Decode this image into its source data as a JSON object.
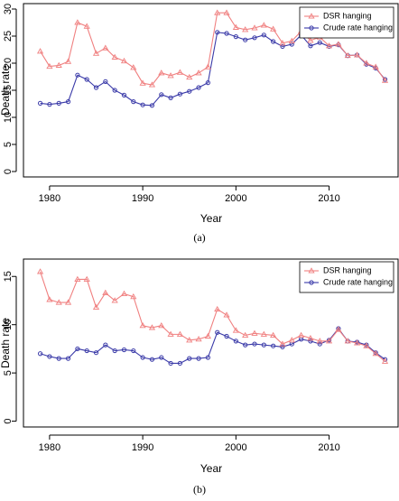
{
  "colors": {
    "dsr": "#f08080",
    "crude": "#3a3aa8",
    "axis": "#000000"
  },
  "chart_data": [
    {
      "type": "line",
      "caption": "(a)",
      "xlabel": "Year",
      "ylabel": "Death rate",
      "xlim": [
        1977.2,
        2017.5
      ],
      "ylim": [
        -1,
        31
      ],
      "xticks": [
        1980,
        1990,
        2000,
        2010
      ],
      "yticks": [
        0,
        5,
        10,
        15,
        20,
        25,
        30
      ],
      "legend": "top-right",
      "x": [
        1979,
        1980,
        1981,
        1982,
        1983,
        1984,
        1985,
        1986,
        1987,
        1988,
        1989,
        1990,
        1991,
        1992,
        1993,
        1994,
        1995,
        1996,
        1997,
        1998,
        1999,
        2000,
        2001,
        2002,
        2003,
        2004,
        2005,
        2006,
        2007,
        2008,
        2009,
        2010,
        2011,
        2012,
        2013,
        2014,
        2015,
        2016
      ],
      "series": [
        {
          "name": "DSR hanging",
          "marker": "triangle",
          "values": [
            22.2,
            19.4,
            19.6,
            20.3,
            27.5,
            26.8,
            21.8,
            22.8,
            21.1,
            20.4,
            19.2,
            16.3,
            16.0,
            18.2,
            17.7,
            18.3,
            17.4,
            18.2,
            19.3,
            29.3,
            29.3,
            26.6,
            26.2,
            26.5,
            27.0,
            26.3,
            23.7,
            24.1,
            25.9,
            24.2,
            24.8,
            23.2,
            23.5,
            21.4,
            21.5,
            20.0,
            19.3,
            16.8
          ]
        },
        {
          "name": "Crude rate hanging",
          "marker": "circle",
          "values": [
            12.6,
            12.4,
            12.6,
            12.9,
            17.8,
            17.0,
            15.5,
            16.6,
            15.0,
            14.1,
            12.9,
            12.3,
            12.2,
            14.2,
            13.6,
            14.3,
            14.8,
            15.5,
            16.4,
            25.7,
            25.5,
            24.9,
            24.3,
            24.7,
            25.2,
            24.0,
            23.1,
            23.5,
            25.2,
            23.2,
            23.8,
            23.1,
            23.4,
            21.4,
            21.5,
            19.8,
            19.1,
            17.0
          ]
        }
      ]
    },
    {
      "type": "line",
      "caption": "(b)",
      "xlabel": "Year",
      "ylabel": "Death rate",
      "xlim": [
        1977.2,
        2017.5
      ],
      "ylim": [
        -0.6,
        16.8
      ],
      "xticks": [
        1980,
        1990,
        2000,
        2010
      ],
      "yticks": [
        0,
        5,
        10,
        15
      ],
      "legend": "top-right",
      "x": [
        1979,
        1980,
        1981,
        1982,
        1983,
        1984,
        1985,
        1986,
        1987,
        1988,
        1989,
        1990,
        1991,
        1992,
        1993,
        1994,
        1995,
        1996,
        1997,
        1998,
        1999,
        2000,
        2001,
        2002,
        2003,
        2004,
        2005,
        2006,
        2007,
        2008,
        2009,
        2010,
        2011,
        2012,
        2013,
        2014,
        2015,
        2016
      ],
      "series": [
        {
          "name": "DSR hanging",
          "marker": "triangle",
          "values": [
            15.5,
            12.6,
            12.3,
            12.3,
            14.7,
            14.7,
            11.8,
            13.3,
            12.5,
            13.2,
            12.9,
            9.9,
            9.7,
            9.9,
            9.0,
            9.0,
            8.4,
            8.5,
            8.8,
            11.6,
            11.0,
            9.4,
            8.9,
            9.1,
            9.0,
            8.9,
            8.0,
            8.4,
            8.9,
            8.6,
            8.3,
            8.3,
            9.5,
            8.3,
            8.1,
            7.8,
            7.0,
            6.2
          ]
        },
        {
          "name": "Crude rate hanging",
          "marker": "circle",
          "values": [
            7.0,
            6.7,
            6.5,
            6.5,
            7.5,
            7.3,
            7.1,
            7.9,
            7.3,
            7.4,
            7.3,
            6.6,
            6.4,
            6.6,
            6.0,
            6.0,
            6.5,
            6.5,
            6.6,
            9.2,
            8.8,
            8.3,
            7.9,
            8.0,
            7.9,
            7.8,
            7.7,
            8.0,
            8.5,
            8.3,
            8.0,
            8.4,
            9.6,
            8.3,
            8.2,
            7.9,
            7.1,
            6.4
          ]
        }
      ]
    }
  ]
}
